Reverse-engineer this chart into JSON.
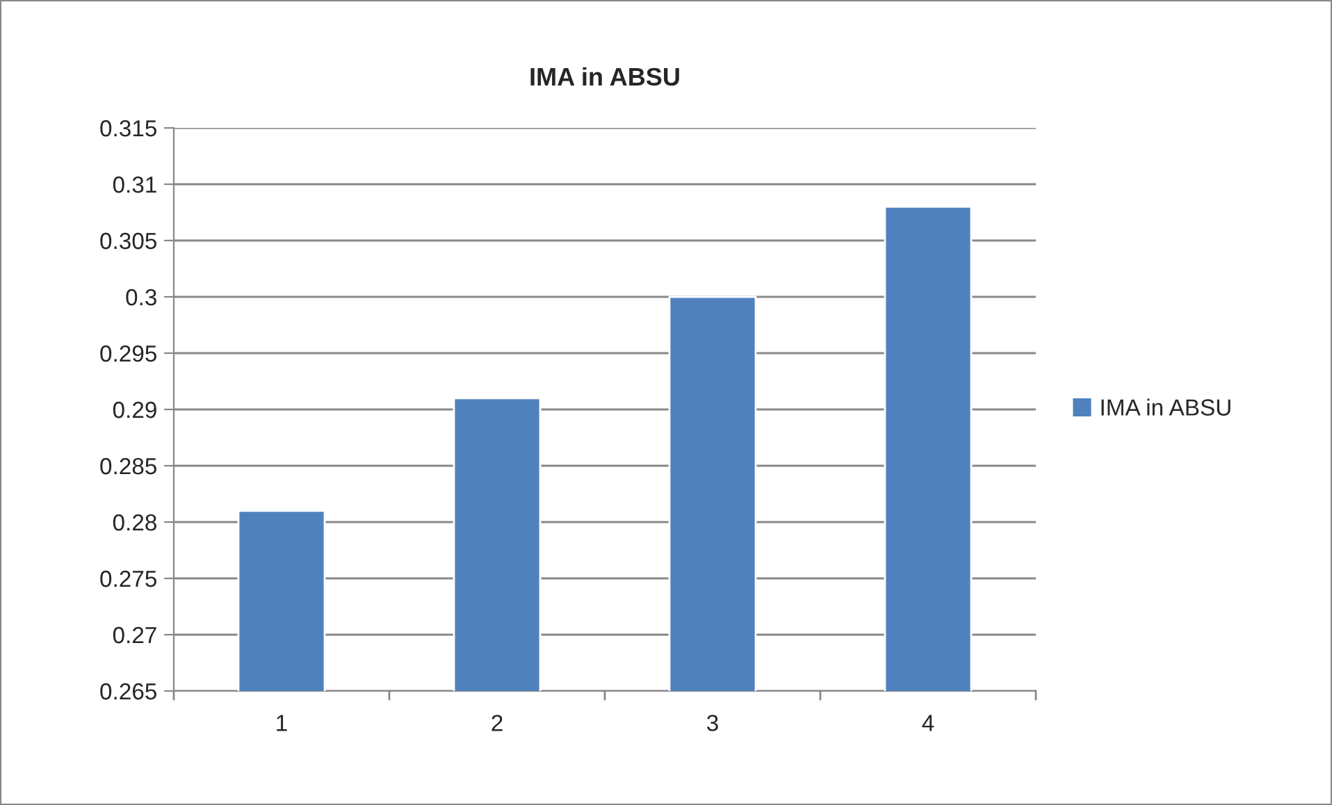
{
  "chart_data": {
    "type": "bar",
    "title": "IMA in ABSU",
    "categories": [
      "1",
      "2",
      "3",
      "4"
    ],
    "series": [
      {
        "name": "IMA in ABSU",
        "color": "#4f81bd",
        "values": [
          0.281,
          0.291,
          0.3,
          0.308
        ]
      }
    ],
    "ylim": [
      0.265,
      0.315
    ],
    "yticks": [
      0.265,
      0.27,
      0.275,
      0.28,
      0.285,
      0.29,
      0.295,
      0.3,
      0.305,
      0.31,
      0.315
    ],
    "grid": "y",
    "legend": "right"
  }
}
